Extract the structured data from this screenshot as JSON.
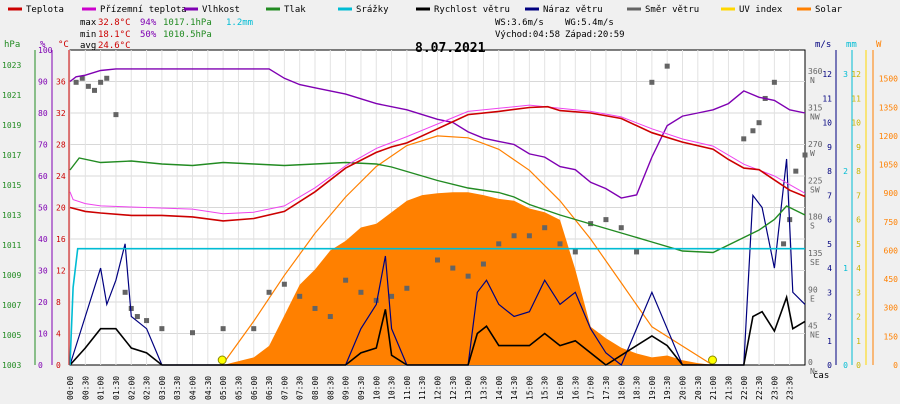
{
  "chart_data": {
    "type": "line",
    "title": "8.07.2021",
    "x": [
      "00:00",
      "00:30",
      "01:00",
      "01:30",
      "02:00",
      "02:30",
      "03:00",
      "03:30",
      "04:00",
      "04:30",
      "05:00",
      "05:30",
      "06:00",
      "06:30",
      "07:00",
      "07:30",
      "08:00",
      "08:30",
      "09:00",
      "09:30",
      "10:00",
      "10:30",
      "11:00",
      "11:30",
      "12:00",
      "12:30",
      "13:00",
      "13:30",
      "14:00",
      "14:30",
      "15:00",
      "15:30",
      "16:00",
      "16:30",
      "17:00",
      "17:30",
      "18:00",
      "18:30",
      "19:00",
      "19:30",
      "20:00",
      "20:30",
      "21:00",
      "21:30",
      "22:00",
      "22:30",
      "23:00",
      "23:30"
    ],
    "xlabel": "čas",
    "legend": [
      "Teplota",
      "Přízemní teplota",
      "Vlhkost",
      "Tlak",
      "Srážky",
      "Rychlost větru",
      "Náraz větru",
      "Směr větru",
      "UV index",
      "Solar"
    ],
    "legend_colors": [
      "#cc0000",
      "#cc00cc",
      "#7f00b2",
      "#228b22",
      "#00bcd4",
      "#000000",
      "#00007f",
      "#646464",
      "#ffd700",
      "#ff8000"
    ],
    "stats": {
      "max": {
        "label": "max",
        "temp": "32.8°C",
        "hum": "94%",
        "press": "1017.1hPa",
        "rain": "1.2mm"
      },
      "min": {
        "label": "min",
        "temp": "18.1°C",
        "hum": "50%",
        "press": "1010.5hPa"
      },
      "avg": {
        "label": "avg",
        "temp": "24.6°C"
      }
    },
    "info": {
      "ws": "WS:3.6m/s",
      "wg": "WG:5.4m/s",
      "sunrise": "Východ:04:58",
      "sunset": "Západ:20:59"
    },
    "axes": {
      "hpa": {
        "unit": "hPa",
        "ticks": [
          "1003",
          "1005",
          "1007",
          "1009",
          "1011",
          "1013",
          "1015",
          "1017",
          "1019",
          "1021",
          "1023"
        ]
      },
      "pct": {
        "unit": "%",
        "ticks": [
          "0",
          "10",
          "20",
          "30",
          "40",
          "50",
          "60",
          "70",
          "80",
          "90",
          "100"
        ]
      },
      "temp": {
        "unit": "°C",
        "ticks": [
          "0",
          "4",
          "8",
          "12",
          "16",
          "20",
          "24",
          "28",
          "32",
          "36"
        ]
      },
      "dir": {
        "ticks": [
          "0",
          "45",
          "90",
          "135",
          "180",
          "225",
          "270",
          "315",
          "360"
        ],
        "labels": [
          "N",
          "NE",
          "E",
          "SE",
          "S",
          "SW",
          "W",
          "NW",
          "N"
        ]
      },
      "ms": {
        "unit": "m/s",
        "ticks": [
          "0",
          "1",
          "2",
          "3",
          "4",
          "5",
          "6",
          "7",
          "8",
          "9",
          "10",
          "11",
          "12"
        ]
      },
      "mm": {
        "unit": "mm",
        "ticks": [
          "0",
          "1",
          "2",
          "3"
        ]
      },
      "uv": {
        "ticks": [
          "0",
          "1",
          "2",
          "3",
          "4",
          "5",
          "6",
          "7",
          "8",
          "9",
          "10",
          "11",
          "12"
        ]
      },
      "wm2": {
        "unit": "W",
        "ticks": [
          "0",
          "150",
          "300",
          "450",
          "600",
          "750",
          "900",
          "1050",
          "1200",
          "1350",
          "1500"
        ]
      }
    },
    "ylim": {
      "temp": [
        0,
        40
      ],
      "press": [
        1003,
        1024
      ],
      "hum": [
        0,
        100
      ],
      "ms": [
        0,
        13
      ],
      "dir": [
        0,
        390
      ],
      "solar": [
        0,
        1650
      ],
      "mm": [
        0,
        3.25
      ]
    },
    "series": {
      "temp": [
        [
          0,
          20
        ],
        [
          0.5,
          19.5
        ],
        [
          1,
          19.3
        ],
        [
          2,
          19
        ],
        [
          3,
          19
        ],
        [
          4,
          18.8
        ],
        [
          5,
          18.3
        ],
        [
          6,
          18.6
        ],
        [
          7,
          19.5
        ],
        [
          8,
          22
        ],
        [
          9,
          25
        ],
        [
          10,
          27
        ],
        [
          10.5,
          27.7
        ],
        [
          11,
          28.2
        ],
        [
          12,
          30
        ],
        [
          13,
          31.8
        ],
        [
          14,
          32.2
        ],
        [
          15,
          32.7
        ],
        [
          15.6,
          32.8
        ],
        [
          16,
          32.3
        ],
        [
          17,
          32
        ],
        [
          18,
          31.3
        ],
        [
          19,
          29.5
        ],
        [
          20,
          28.3
        ],
        [
          21,
          27.4
        ],
        [
          21.5,
          26.1
        ],
        [
          22,
          25
        ],
        [
          22.5,
          24.8
        ],
        [
          23,
          23.5
        ],
        [
          23.5,
          22.2
        ],
        [
          24,
          21.4
        ]
      ],
      "feels": [
        [
          0,
          22
        ],
        [
          0.1,
          21
        ],
        [
          0.5,
          20.5
        ],
        [
          1,
          20.2
        ],
        [
          4,
          19.8
        ],
        [
          5,
          19.2
        ],
        [
          6,
          19.4
        ],
        [
          7,
          20.2
        ],
        [
          8,
          22.5
        ],
        [
          9,
          25.3
        ],
        [
          10,
          27.5
        ],
        [
          11,
          29
        ],
        [
          12,
          30.6
        ],
        [
          13,
          32.2
        ],
        [
          14,
          32.6
        ],
        [
          15,
          33
        ],
        [
          16,
          32.6
        ],
        [
          17,
          32.2
        ],
        [
          18,
          31.5
        ],
        [
          19,
          30
        ],
        [
          20,
          28.7
        ],
        [
          21,
          27.8
        ],
        [
          22,
          25.5
        ],
        [
          23,
          24
        ],
        [
          24,
          21.8
        ]
      ],
      "hum": [
        [
          0,
          90
        ],
        [
          0.2,
          91.5
        ],
        [
          0.5,
          92
        ],
        [
          1,
          93.5
        ],
        [
          1.5,
          94
        ],
        [
          2,
          94
        ],
        [
          3,
          94
        ],
        [
          4,
          94
        ],
        [
          5,
          94
        ],
        [
          6,
          94
        ],
        [
          6.5,
          94
        ],
        [
          7,
          91
        ],
        [
          7.5,
          89
        ],
        [
          8,
          88
        ],
        [
          9,
          86
        ],
        [
          10,
          83
        ],
        [
          11,
          81
        ],
        [
          12,
          78
        ],
        [
          12.5,
          77
        ],
        [
          13,
          74
        ],
        [
          13.5,
          72
        ],
        [
          14,
          71
        ],
        [
          14.5,
          70
        ],
        [
          15,
          67
        ],
        [
          15.5,
          66
        ],
        [
          16,
          63
        ],
        [
          16.5,
          62
        ],
        [
          17,
          58
        ],
        [
          17.5,
          56
        ],
        [
          18,
          53
        ],
        [
          18.5,
          54
        ],
        [
          19,
          66
        ],
        [
          19.5,
          76
        ],
        [
          20,
          79
        ],
        [
          20.5,
          80
        ],
        [
          21,
          81
        ],
        [
          21.5,
          83
        ],
        [
          22,
          87
        ],
        [
          22.5,
          85
        ],
        [
          23,
          84
        ],
        [
          23.5,
          81
        ],
        [
          24,
          80
        ]
      ],
      "press": [
        [
          0,
          1016
        ],
        [
          0.3,
          1016.8
        ],
        [
          1,
          1016.5
        ],
        [
          2,
          1016.6
        ],
        [
          3,
          1016.4
        ],
        [
          4,
          1016.3
        ],
        [
          5,
          1016.5
        ],
        [
          6,
          1016.4
        ],
        [
          7,
          1016.3
        ],
        [
          8,
          1016.4
        ],
        [
          9,
          1016.5
        ],
        [
          10,
          1016.4
        ],
        [
          10.5,
          1016.2
        ],
        [
          11,
          1015.9
        ],
        [
          12,
          1015.3
        ],
        [
          13,
          1014.8
        ],
        [
          14,
          1014.5
        ],
        [
          14.5,
          1014.2
        ],
        [
          15,
          1013.7
        ],
        [
          16,
          1013
        ],
        [
          17,
          1012.4
        ],
        [
          18,
          1011.8
        ],
        [
          19,
          1011.2
        ],
        [
          20,
          1010.6
        ],
        [
          21,
          1010.5
        ],
        [
          22,
          1011.5
        ],
        [
          22.5,
          1012
        ],
        [
          23,
          1012.7
        ],
        [
          23.4,
          1013.6
        ],
        [
          24,
          1013
        ]
      ],
      "rain": [
        [
          0,
          0
        ],
        [
          0.1,
          0.8
        ],
        [
          0.25,
          1.2
        ],
        [
          24,
          1.2
        ]
      ],
      "solar": [
        [
          5,
          0
        ],
        [
          6,
          40
        ],
        [
          6.5,
          100
        ],
        [
          7,
          260
        ],
        [
          7.5,
          420
        ],
        [
          8,
          500
        ],
        [
          8.5,
          600
        ],
        [
          9,
          650
        ],
        [
          9.5,
          720
        ],
        [
          10,
          740
        ],
        [
          10.5,
          800
        ],
        [
          11,
          860
        ],
        [
          11.5,
          890
        ],
        [
          12,
          900
        ],
        [
          12.5,
          905
        ],
        [
          13,
          905
        ],
        [
          13.5,
          890
        ],
        [
          14,
          870
        ],
        [
          14.5,
          860
        ],
        [
          15,
          820
        ],
        [
          15.5,
          800
        ],
        [
          16,
          760
        ],
        [
          16.5,
          500
        ],
        [
          17,
          200
        ],
        [
          17.5,
          140
        ],
        [
          18,
          90
        ],
        [
          18.5,
          60
        ],
        [
          19,
          40
        ],
        [
          19.5,
          50
        ],
        [
          20,
          25
        ],
        [
          20.5,
          10
        ],
        [
          21,
          0
        ]
      ],
      "clear_sky_solar": [
        [
          4.97,
          0
        ],
        [
          6,
          230
        ],
        [
          7,
          470
        ],
        [
          8,
          690
        ],
        [
          9,
          880
        ],
        [
          10,
          1040
        ],
        [
          11,
          1150
        ],
        [
          12,
          1200
        ],
        [
          13,
          1190
        ],
        [
          14,
          1130
        ],
        [
          15,
          1020
        ],
        [
          16,
          860
        ],
        [
          17,
          660
        ],
        [
          18,
          430
        ],
        [
          19,
          200
        ],
        [
          20.98,
          0
        ]
      ],
      "gust": [
        [
          0,
          0
        ],
        [
          0.5,
          2
        ],
        [
          1,
          4
        ],
        [
          1.2,
          2.5
        ],
        [
          1.5,
          3.5
        ],
        [
          1.8,
          5
        ],
        [
          2,
          2
        ],
        [
          2.5,
          1.5
        ],
        [
          3,
          0
        ],
        [
          6,
          0
        ],
        [
          9,
          0
        ],
        [
          9.5,
          1.5
        ],
        [
          10,
          2.5
        ],
        [
          10.3,
          4.5
        ],
        [
          10.5,
          1.5
        ],
        [
          11,
          0
        ],
        [
          13,
          0
        ],
        [
          13.3,
          3
        ],
        [
          13.6,
          3.5
        ],
        [
          14,
          2.5
        ],
        [
          14.5,
          2
        ],
        [
          15,
          2.2
        ],
        [
          15.5,
          3.5
        ],
        [
          16,
          2.5
        ],
        [
          16.5,
          3
        ],
        [
          17,
          1.5
        ],
        [
          17.5,
          0.5
        ],
        [
          18,
          0
        ],
        [
          19,
          3
        ],
        [
          19.5,
          1.5
        ],
        [
          20,
          0
        ],
        [
          22,
          0
        ],
        [
          22.3,
          7
        ],
        [
          22.6,
          6.5
        ],
        [
          23,
          4
        ],
        [
          23.4,
          8.5
        ],
        [
          23.6,
          3
        ],
        [
          24,
          2.5
        ]
      ],
      "wind": [
        [
          0,
          0
        ],
        [
          0.5,
          0.7
        ],
        [
          1,
          1.5
        ],
        [
          1.5,
          1.5
        ],
        [
          2,
          0.7
        ],
        [
          2.5,
          0.5
        ],
        [
          3,
          0
        ],
        [
          9,
          0
        ],
        [
          9.5,
          0.5
        ],
        [
          10,
          0.7
        ],
        [
          10.3,
          2.3
        ],
        [
          10.5,
          0.4
        ],
        [
          11,
          0
        ],
        [
          13,
          0
        ],
        [
          13.3,
          1.3
        ],
        [
          13.6,
          1.6
        ],
        [
          14,
          0.8
        ],
        [
          15,
          0.8
        ],
        [
          15.5,
          1.3
        ],
        [
          16,
          0.8
        ],
        [
          16.5,
          1
        ],
        [
          17,
          0.5
        ],
        [
          17.5,
          0
        ],
        [
          19,
          1.2
        ],
        [
          19.5,
          0.8
        ],
        [
          20,
          0
        ],
        [
          22,
          0
        ],
        [
          22.3,
          2
        ],
        [
          22.6,
          2.2
        ],
        [
          23,
          1.4
        ],
        [
          23.4,
          2.8
        ],
        [
          23.6,
          1.5
        ],
        [
          24,
          1.8
        ]
      ],
      "dir": [
        [
          0.2,
          350
        ],
        [
          0.4,
          355
        ],
        [
          0.6,
          345
        ],
        [
          0.8,
          340
        ],
        [
          1,
          350
        ],
        [
          1.2,
          355
        ],
        [
          1.5,
          310
        ],
        [
          1.8,
          90
        ],
        [
          2,
          70
        ],
        [
          2.2,
          60
        ],
        [
          2.5,
          55
        ],
        [
          3,
          45
        ],
        [
          4,
          40
        ],
        [
          5,
          45
        ],
        [
          6,
          45
        ],
        [
          6.5,
          90
        ],
        [
          7,
          100
        ],
        [
          7.5,
          85
        ],
        [
          8,
          70
        ],
        [
          8.5,
          60
        ],
        [
          9,
          105
        ],
        [
          9.5,
          90
        ],
        [
          10,
          80
        ],
        [
          10.5,
          85
        ],
        [
          11,
          95
        ],
        [
          12,
          130
        ],
        [
          12.5,
          120
        ],
        [
          13,
          110
        ],
        [
          13.5,
          125
        ],
        [
          14,
          150
        ],
        [
          14.5,
          160
        ],
        [
          15,
          160
        ],
        [
          15.5,
          170
        ],
        [
          16,
          150
        ],
        [
          16.5,
          140
        ],
        [
          17,
          175
        ],
        [
          17.5,
          180
        ],
        [
          18,
          170
        ],
        [
          18.5,
          140
        ],
        [
          19,
          350
        ],
        [
          19.5,
          370
        ],
        [
          22,
          280
        ],
        [
          22.3,
          290
        ],
        [
          22.5,
          300
        ],
        [
          22.7,
          330
        ],
        [
          23,
          350
        ],
        [
          23.3,
          150
        ],
        [
          23.5,
          180
        ],
        [
          23.7,
          240
        ],
        [
          24,
          260
        ]
      ]
    }
  }
}
